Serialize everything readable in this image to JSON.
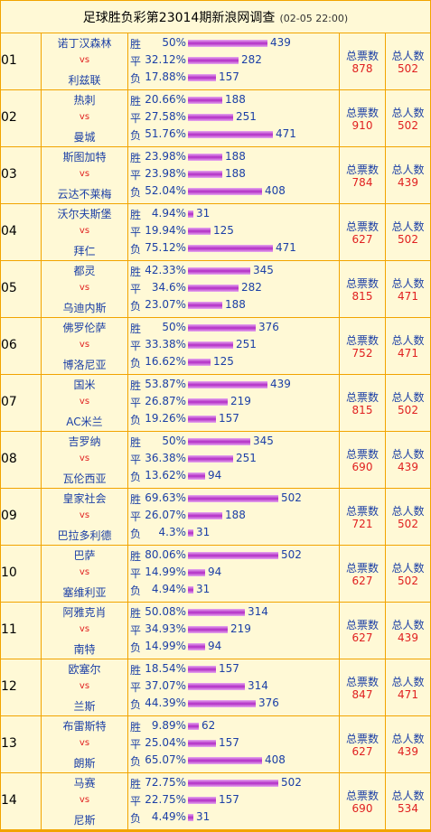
{
  "title": "足球胜负彩第23014期新浪网调查",
  "timestamp": "(02-05 22:00)",
  "vs_label": "vs",
  "total_votes_label": "总票数",
  "total_people_label": "总人数",
  "colors": {
    "border": "#f2a400",
    "background": "#fff9d6",
    "team_text": "#1b3fa6",
    "vs_text": "#e02020",
    "bar": "#c45ad6"
  },
  "matches": [
    {
      "num": "01",
      "home": "诺丁汉森林",
      "away": "利兹联",
      "odds": [
        {
          "label": "胜",
          "pct": "50%",
          "count": 439
        },
        {
          "label": "平",
          "pct": "32.12%",
          "count": 282
        },
        {
          "label": "负",
          "pct": "17.88%",
          "count": 157
        }
      ],
      "total_votes": 878,
      "total_people": 502
    },
    {
      "num": "02",
      "home": "热刺",
      "away": "曼城",
      "odds": [
        {
          "label": "胜",
          "pct": "20.66%",
          "count": 188
        },
        {
          "label": "平",
          "pct": "27.58%",
          "count": 251
        },
        {
          "label": "负",
          "pct": "51.76%",
          "count": 471
        }
      ],
      "total_votes": 910,
      "total_people": 502
    },
    {
      "num": "03",
      "home": "斯图加特",
      "away": "云达不莱梅",
      "odds": [
        {
          "label": "胜",
          "pct": "23.98%",
          "count": 188
        },
        {
          "label": "平",
          "pct": "23.98%",
          "count": 188
        },
        {
          "label": "负",
          "pct": "52.04%",
          "count": 408
        }
      ],
      "total_votes": 784,
      "total_people": 439
    },
    {
      "num": "04",
      "home": "沃尔夫斯堡",
      "away": "拜仁",
      "odds": [
        {
          "label": "胜",
          "pct": "4.94%",
          "count": 31
        },
        {
          "label": "平",
          "pct": "19.94%",
          "count": 125
        },
        {
          "label": "负",
          "pct": "75.12%",
          "count": 471
        }
      ],
      "total_votes": 627,
      "total_people": 502
    },
    {
      "num": "05",
      "home": "都灵",
      "away": "乌迪内斯",
      "odds": [
        {
          "label": "胜",
          "pct": "42.33%",
          "count": 345
        },
        {
          "label": "平",
          "pct": "34.6%",
          "count": 282
        },
        {
          "label": "负",
          "pct": "23.07%",
          "count": 188
        }
      ],
      "total_votes": 815,
      "total_people": 471
    },
    {
      "num": "06",
      "home": "佛罗伦萨",
      "away": "博洛尼亚",
      "odds": [
        {
          "label": "胜",
          "pct": "50%",
          "count": 376
        },
        {
          "label": "平",
          "pct": "33.38%",
          "count": 251
        },
        {
          "label": "负",
          "pct": "16.62%",
          "count": 125
        }
      ],
      "total_votes": 752,
      "total_people": 471
    },
    {
      "num": "07",
      "home": "国米",
      "away": "AC米兰",
      "odds": [
        {
          "label": "胜",
          "pct": "53.87%",
          "count": 439
        },
        {
          "label": "平",
          "pct": "26.87%",
          "count": 219
        },
        {
          "label": "负",
          "pct": "19.26%",
          "count": 157
        }
      ],
      "total_votes": 815,
      "total_people": 502
    },
    {
      "num": "08",
      "home": "吉罗纳",
      "away": "瓦伦西亚",
      "odds": [
        {
          "label": "胜",
          "pct": "50%",
          "count": 345
        },
        {
          "label": "平",
          "pct": "36.38%",
          "count": 251
        },
        {
          "label": "负",
          "pct": "13.62%",
          "count": 94
        }
      ],
      "total_votes": 690,
      "total_people": 439
    },
    {
      "num": "09",
      "home": "皇家社会",
      "away": "巴拉多利德",
      "odds": [
        {
          "label": "胜",
          "pct": "69.63%",
          "count": 502
        },
        {
          "label": "平",
          "pct": "26.07%",
          "count": 188
        },
        {
          "label": "负",
          "pct": "4.3%",
          "count": 31
        }
      ],
      "total_votes": 721,
      "total_people": 502
    },
    {
      "num": "10",
      "home": "巴萨",
      "away": "塞维利亚",
      "odds": [
        {
          "label": "胜",
          "pct": "80.06%",
          "count": 502
        },
        {
          "label": "平",
          "pct": "14.99%",
          "count": 94
        },
        {
          "label": "负",
          "pct": "4.94%",
          "count": 31
        }
      ],
      "total_votes": 627,
      "total_people": 502
    },
    {
      "num": "11",
      "home": "阿雅克肖",
      "away": "南特",
      "odds": [
        {
          "label": "胜",
          "pct": "50.08%",
          "count": 314
        },
        {
          "label": "平",
          "pct": "34.93%",
          "count": 219
        },
        {
          "label": "负",
          "pct": "14.99%",
          "count": 94
        }
      ],
      "total_votes": 627,
      "total_people": 439
    },
    {
      "num": "12",
      "home": "欧塞尔",
      "away": "兰斯",
      "odds": [
        {
          "label": "胜",
          "pct": "18.54%",
          "count": 157
        },
        {
          "label": "平",
          "pct": "37.07%",
          "count": 314
        },
        {
          "label": "负",
          "pct": "44.39%",
          "count": 376
        }
      ],
      "total_votes": 847,
      "total_people": 471
    },
    {
      "num": "13",
      "home": "布雷斯特",
      "away": "朗斯",
      "odds": [
        {
          "label": "胜",
          "pct": "9.89%",
          "count": 62
        },
        {
          "label": "平",
          "pct": "25.04%",
          "count": 157
        },
        {
          "label": "负",
          "pct": "65.07%",
          "count": 408
        }
      ],
      "total_votes": 627,
      "total_people": 439
    },
    {
      "num": "14",
      "home": "马赛",
      "away": "尼斯",
      "odds": [
        {
          "label": "胜",
          "pct": "72.75%",
          "count": 502
        },
        {
          "label": "平",
          "pct": "22.75%",
          "count": 157
        },
        {
          "label": "负",
          "pct": "4.49%",
          "count": 31
        }
      ],
      "total_votes": 690,
      "total_people": 534
    }
  ]
}
